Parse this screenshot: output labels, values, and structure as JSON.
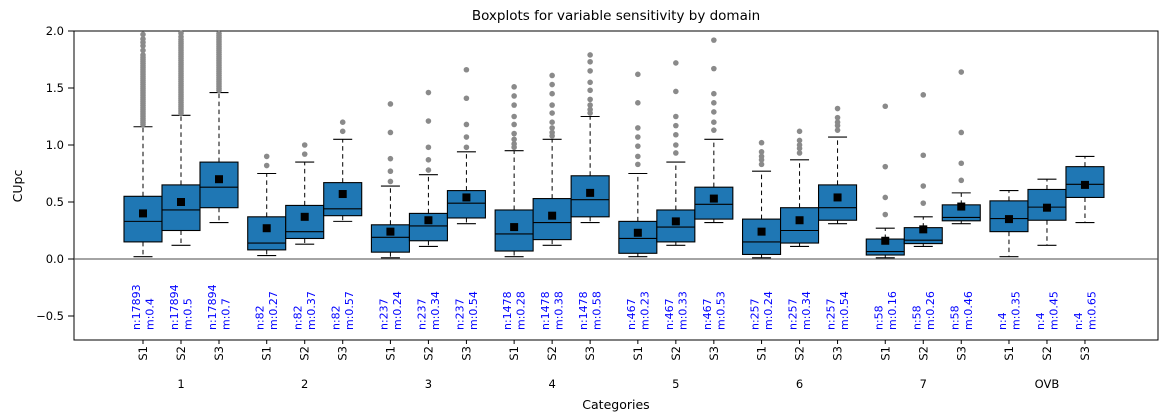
{
  "chart_data": {
    "type": "boxplot",
    "title": "Boxplots for variable sensitivity by domain",
    "xlabel": "Categories",
    "ylabel": "CUpc",
    "ylim": [
      -0.72,
      2.0
    ],
    "grid": false,
    "zero_line": true,
    "yticks": [
      {
        "label": "2.0",
        "value": 2.0
      },
      {
        "label": "1.5",
        "value": 1.5
      },
      {
        "label": "1.0",
        "value": 1.0
      },
      {
        "label": "0.5",
        "value": 0.5
      },
      {
        "label": "0.0",
        "value": 0.0
      },
      {
        "label": "−0.5",
        "value": -0.5
      }
    ],
    "series_labels": [
      "S1",
      "S2",
      "S3"
    ],
    "colors": {
      "box_fill": "#1f77b4",
      "box_edge": "#000000",
      "median": "#000000",
      "mean_marker": "#000000",
      "flier": "#8a8a8a",
      "annotation": "#0000ff"
    },
    "groups": [
      {
        "label": "1",
        "boxes": [
          {
            "series": "S1",
            "ann_n": "n:17893",
            "ann_m": "m:0.4",
            "mean": 0.4,
            "whislo": 0.02,
            "q1": 0.15,
            "med": 0.33,
            "q3": 0.55,
            "whishi": 1.16,
            "fliers": [
              1.79,
              1.83,
              1.87,
              1.9,
              1.93,
              1.97
            ],
            "flier_column": [
              1.18,
              1.77
            ]
          },
          {
            "series": "S2",
            "ann_n": "n:17894",
            "ann_m": "m:0.5",
            "mean": 0.5,
            "whislo": 0.12,
            "q1": 0.25,
            "med": 0.43,
            "q3": 0.65,
            "whishi": 1.26,
            "fliers": [
              1.95,
              1.98
            ],
            "flier_column": [
              1.28,
              1.93
            ]
          },
          {
            "series": "S3",
            "ann_n": "n:17894",
            "ann_m": "m:0.7",
            "mean": 0.7,
            "whislo": 0.32,
            "q1": 0.45,
            "med": 0.63,
            "q3": 0.85,
            "whishi": 1.46,
            "fliers": [],
            "flier_column": [
              1.48,
              1.99
            ]
          }
        ]
      },
      {
        "label": "2",
        "boxes": [
          {
            "series": "S1",
            "ann_n": "n:82",
            "ann_m": "m:0.27",
            "mean": 0.27,
            "whislo": 0.03,
            "q1": 0.08,
            "med": 0.14,
            "q3": 0.37,
            "whishi": 0.75,
            "fliers": [
              0.82,
              0.9
            ],
            "flier_column": null
          },
          {
            "series": "S2",
            "ann_n": "n:82",
            "ann_m": "m:0.37",
            "mean": 0.37,
            "whislo": 0.13,
            "q1": 0.18,
            "med": 0.24,
            "q3": 0.47,
            "whishi": 0.85,
            "fliers": [
              0.92,
              1.0
            ],
            "flier_column": null
          },
          {
            "series": "S3",
            "ann_n": "n:82",
            "ann_m": "m:0.57",
            "mean": 0.57,
            "whislo": 0.33,
            "q1": 0.38,
            "med": 0.44,
            "q3": 0.67,
            "whishi": 1.05,
            "fliers": [
              1.12,
              1.2
            ],
            "flier_column": null
          }
        ]
      },
      {
        "label": "3",
        "boxes": [
          {
            "series": "S1",
            "ann_n": "n:237",
            "ann_m": "m:0.24",
            "mean": 0.24,
            "whislo": 0.01,
            "q1": 0.06,
            "med": 0.19,
            "q3": 0.3,
            "whishi": 0.64,
            "fliers": [
              0.68,
              0.77,
              0.88,
              1.11,
              1.36
            ],
            "flier_column": null
          },
          {
            "series": "S2",
            "ann_n": "n:237",
            "ann_m": "m:0.34",
            "mean": 0.34,
            "whislo": 0.11,
            "q1": 0.16,
            "med": 0.29,
            "q3": 0.4,
            "whishi": 0.74,
            "fliers": [
              0.78,
              0.87,
              0.98,
              1.21,
              1.46
            ],
            "flier_column": null
          },
          {
            "series": "S3",
            "ann_n": "n:237",
            "ann_m": "m:0.54",
            "mean": 0.54,
            "whislo": 0.31,
            "q1": 0.36,
            "med": 0.49,
            "q3": 0.6,
            "whishi": 0.94,
            "fliers": [
              0.98,
              1.07,
              1.18,
              1.41,
              1.66
            ],
            "flier_column": null
          }
        ]
      },
      {
        "label": "4",
        "boxes": [
          {
            "series": "S1",
            "ann_n": "n:1478",
            "ann_m": "m:0.28",
            "mean": 0.28,
            "whislo": 0.02,
            "q1": 0.07,
            "med": 0.22,
            "q3": 0.43,
            "whishi": 0.95,
            "fliers": [
              0.98,
              1.01,
              1.05,
              1.1,
              1.18,
              1.25,
              1.35,
              1.43,
              1.51
            ],
            "flier_column": null
          },
          {
            "series": "S2",
            "ann_n": "n:1478",
            "ann_m": "m:0.38",
            "mean": 0.38,
            "whislo": 0.12,
            "q1": 0.17,
            "med": 0.32,
            "q3": 0.53,
            "whishi": 1.05,
            "fliers": [
              1.08,
              1.11,
              1.15,
              1.2,
              1.28,
              1.35,
              1.45,
              1.53,
              1.61
            ],
            "flier_column": null
          },
          {
            "series": "S3",
            "ann_n": "n:1478",
            "ann_m": "m:0.58",
            "mean": 0.58,
            "whislo": 0.32,
            "q1": 0.37,
            "med": 0.52,
            "q3": 0.73,
            "whishi": 1.25,
            "fliers": [
              1.28,
              1.31,
              1.35,
              1.4,
              1.48,
              1.55,
              1.65,
              1.73,
              1.79
            ],
            "flier_column": null
          }
        ]
      },
      {
        "label": "5",
        "boxes": [
          {
            "series": "S1",
            "ann_n": "n:467",
            "ann_m": "m:0.23",
            "mean": 0.23,
            "whislo": 0.02,
            "q1": 0.05,
            "med": 0.18,
            "q3": 0.33,
            "whishi": 0.75,
            "fliers": [
              0.83,
              0.9,
              0.99,
              1.07,
              1.15,
              1.37,
              1.62
            ],
            "flier_column": null
          },
          {
            "series": "S2",
            "ann_n": "n:467",
            "ann_m": "m:0.33",
            "mean": 0.33,
            "whislo": 0.12,
            "q1": 0.15,
            "med": 0.28,
            "q3": 0.43,
            "whishi": 0.85,
            "fliers": [
              0.93,
              1.0,
              1.09,
              1.17,
              1.25,
              1.47,
              1.72
            ],
            "flier_column": null
          },
          {
            "series": "S3",
            "ann_n": "n:467",
            "ann_m": "m:0.53",
            "mean": 0.53,
            "whislo": 0.32,
            "q1": 0.35,
            "med": 0.48,
            "q3": 0.63,
            "whishi": 1.05,
            "fliers": [
              1.13,
              1.2,
              1.29,
              1.37,
              1.45,
              1.67,
              1.92
            ],
            "flier_column": null
          }
        ]
      },
      {
        "label": "6",
        "boxes": [
          {
            "series": "S1",
            "ann_n": "n:257",
            "ann_m": "m:0.24",
            "mean": 0.24,
            "whislo": 0.01,
            "q1": 0.04,
            "med": 0.15,
            "q3": 0.35,
            "whishi": 0.77,
            "fliers": [
              0.83,
              0.87,
              0.9,
              0.94,
              1.02
            ],
            "flier_column": null
          },
          {
            "series": "S2",
            "ann_n": "n:257",
            "ann_m": "m:0.34",
            "mean": 0.34,
            "whislo": 0.11,
            "q1": 0.14,
            "med": 0.25,
            "q3": 0.45,
            "whishi": 0.87,
            "fliers": [
              0.93,
              0.97,
              1.0,
              1.04,
              1.12
            ],
            "flier_column": null
          },
          {
            "series": "S3",
            "ann_n": "n:257",
            "ann_m": "m:0.54",
            "mean": 0.54,
            "whislo": 0.31,
            "q1": 0.34,
            "med": 0.45,
            "q3": 0.65,
            "whishi": 1.07,
            "fliers": [
              1.13,
              1.17,
              1.2,
              1.24,
              1.32
            ],
            "flier_column": null
          }
        ]
      },
      {
        "label": "7",
        "boxes": [
          {
            "series": "S1",
            "ann_n": "n:58",
            "ann_m": "m:0.16",
            "mean": 0.16,
            "whislo": 0.01,
            "q1": 0.035,
            "med": 0.065,
            "q3": 0.175,
            "whishi": 0.27,
            "fliers": [
              0.39,
              0.54,
              0.81,
              1.34
            ],
            "flier_column": null
          },
          {
            "series": "S2",
            "ann_n": "n:58",
            "ann_m": "m:0.26",
            "mean": 0.26,
            "whislo": 0.11,
            "q1": 0.135,
            "med": 0.165,
            "q3": 0.275,
            "whishi": 0.37,
            "fliers": [
              0.49,
              0.64,
              0.91,
              1.44
            ],
            "flier_column": null
          },
          {
            "series": "S3",
            "ann_n": "n:58",
            "ann_m": "m:0.46",
            "mean": 0.46,
            "whislo": 0.31,
            "q1": 0.335,
            "med": 0.365,
            "q3": 0.475,
            "whishi": 0.58,
            "fliers": [
              0.69,
              0.84,
              1.11,
              1.64
            ],
            "flier_column": null
          }
        ]
      },
      {
        "label": "OVB",
        "boxes": [
          {
            "series": "S1",
            "ann_n": "n:4",
            "ann_m": "m:0.35",
            "mean": 0.35,
            "whislo": 0.02,
            "q1": 0.24,
            "med": 0.355,
            "q3": 0.51,
            "whishi": 0.6,
            "fliers": [],
            "flier_column": null
          },
          {
            "series": "S2",
            "ann_n": "n:4",
            "ann_m": "m:0.45",
            "mean": 0.45,
            "whislo": 0.12,
            "q1": 0.34,
            "med": 0.455,
            "q3": 0.61,
            "whishi": 0.7,
            "fliers": [],
            "flier_column": null
          },
          {
            "series": "S3",
            "ann_n": "n:4",
            "ann_m": "m:0.65",
            "mean": 0.65,
            "whislo": 0.32,
            "q1": 0.54,
            "med": 0.655,
            "q3": 0.81,
            "whishi": 0.9,
            "fliers": [],
            "flier_column": null
          }
        ]
      }
    ]
  }
}
